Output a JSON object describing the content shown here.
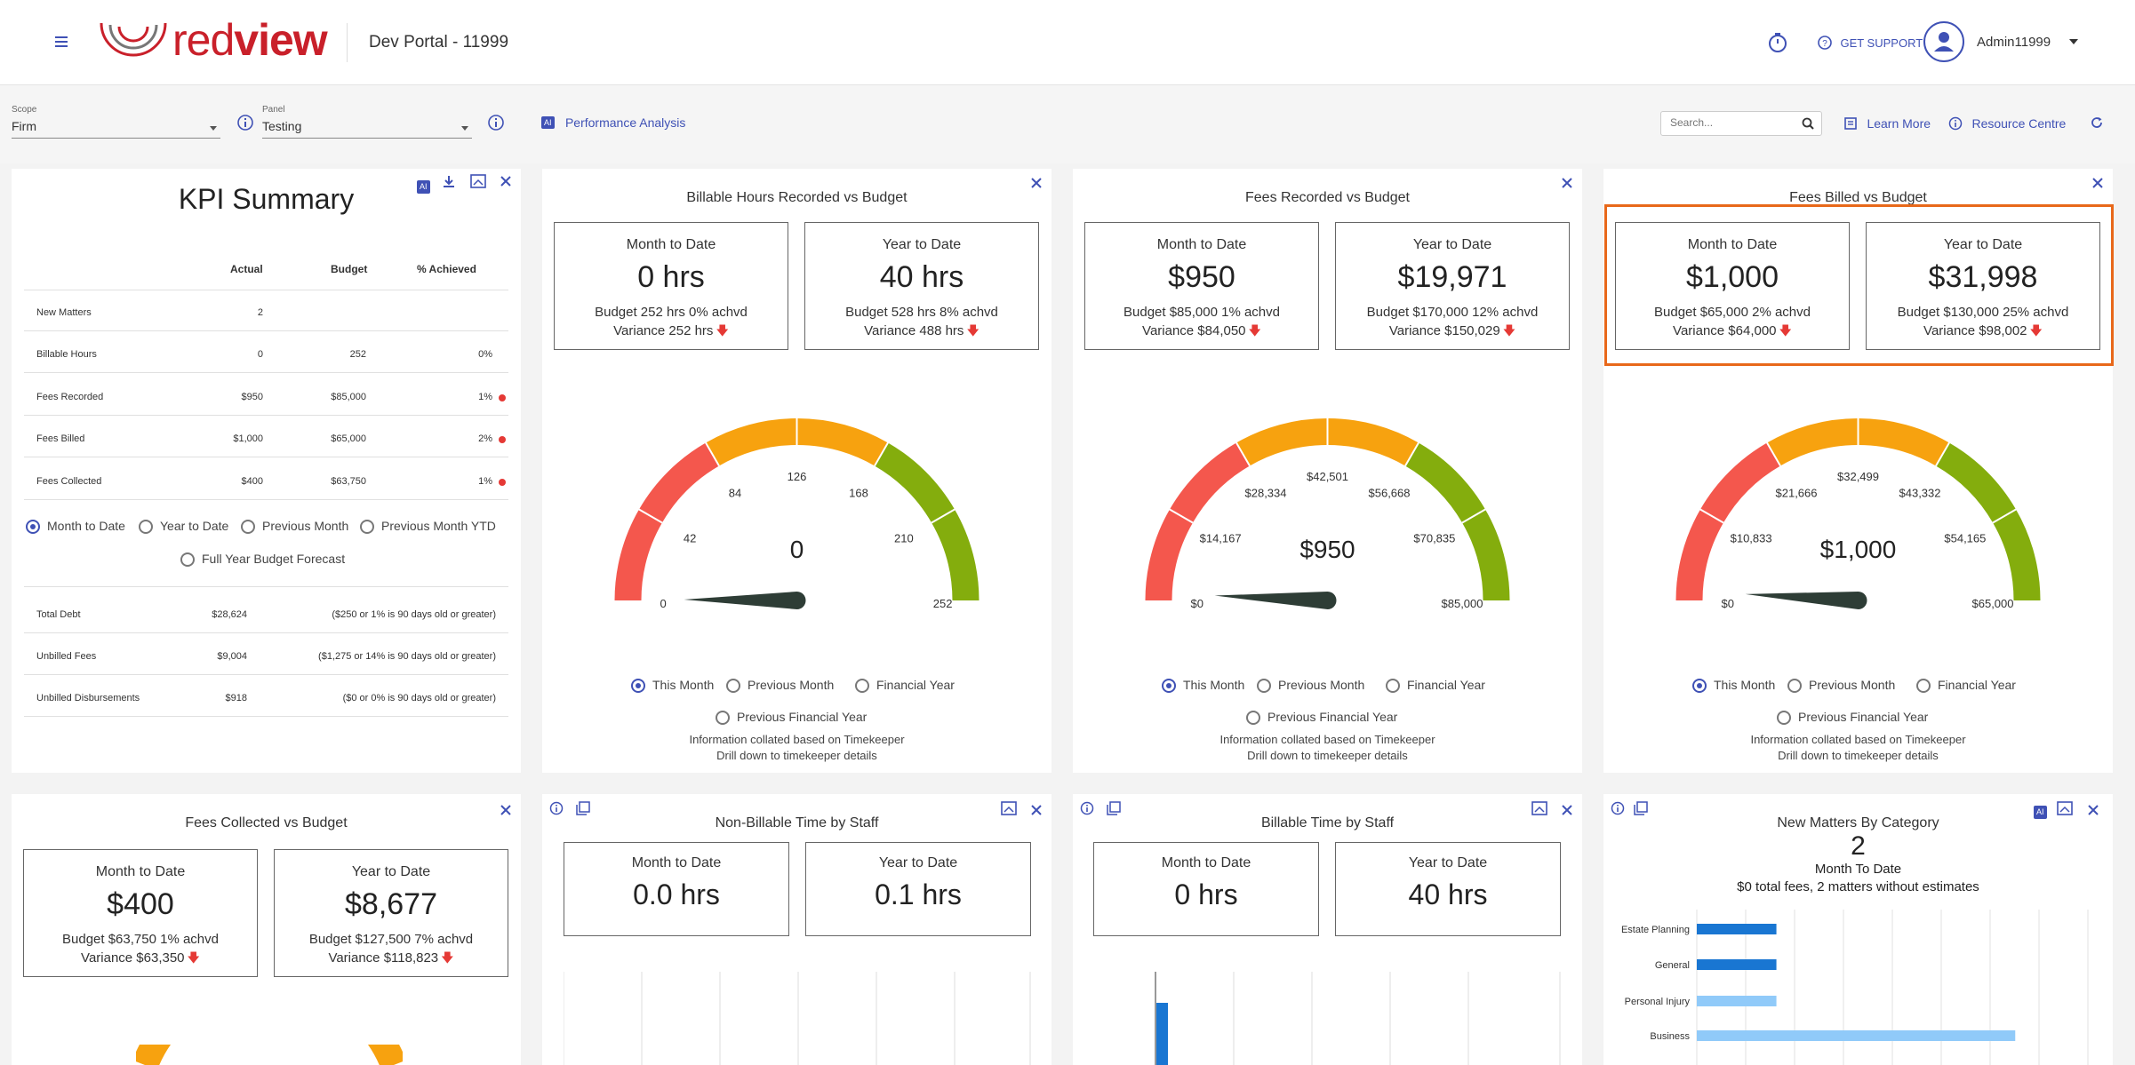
{
  "header": {
    "menu_icon": "hamburger-icon",
    "logo_prefix": "red",
    "logo_suffix": "view",
    "portal_title": "Dev Portal - 11999",
    "timer_icon": "stopwatch-icon",
    "support_label": "GET SUPPORT",
    "user_name": "Admin11999"
  },
  "toolbar": {
    "scope_label": "Scope",
    "scope_value": "Firm",
    "panel_label": "Panel",
    "panel_value": "Testing",
    "ai_badge": "AI",
    "performance_link": "Performance Analysis",
    "search_placeholder": "Search...",
    "learn_more": "Learn More",
    "resource_centre": "Resource Centre"
  },
  "kpi": {
    "title": "KPI Summary",
    "ai_badge": "AI",
    "columns": [
      "Actual",
      "Budget",
      "% Achieved"
    ],
    "rows": [
      {
        "name": "New Matters",
        "actual": "2",
        "budget": "",
        "pct": "",
        "dot": false
      },
      {
        "name": "Billable Hours",
        "actual": "0",
        "budget": "252",
        "pct": "0%",
        "dot": false
      },
      {
        "name": "Fees Recorded",
        "actual": "$950",
        "budget": "$85,000",
        "pct": "1%",
        "dot": true
      },
      {
        "name": "Fees Billed",
        "actual": "$1,000",
        "budget": "$65,000",
        "pct": "2%",
        "dot": true
      },
      {
        "name": "Fees Collected",
        "actual": "$400",
        "budget": "$63,750",
        "pct": "1%",
        "dot": true
      }
    ],
    "periods": [
      "Month to Date",
      "Year to Date",
      "Previous Month",
      "Previous Month YTD",
      "Full Year Budget Forecast"
    ],
    "selected_period": 0,
    "debt_rows": [
      {
        "name": "Total Debt",
        "value": "$28,624",
        "note": "($250 or 1% is 90 days old or greater)"
      },
      {
        "name": "Unbilled Fees",
        "value": "$9,004",
        "note": "($1,275 or 14% is 90 days old or greater)"
      },
      {
        "name": "Unbilled Disbursements",
        "value": "$918",
        "note": "($0 or 0% is 90 days old or greater)"
      }
    ]
  },
  "gauge_options": [
    "This Month",
    "Previous Month",
    "Financial Year",
    "Previous Financial Year"
  ],
  "gauge_note_1": "Information collated based on Timekeeper",
  "gauge_note_2": "Drill down to timekeeper details",
  "billable": {
    "title": "Billable Hours Recorded vs Budget",
    "mtd": {
      "label": "Month to Date",
      "value": "0 hrs",
      "budget": "Budget 252 hrs 0% achvd",
      "variance": "Variance 252 hrs"
    },
    "ytd": {
      "label": "Year to Date",
      "value": "40 hrs",
      "budget": "Budget 528 hrs 8% achvd",
      "variance": "Variance 488 hrs"
    },
    "gauge": {
      "value_label": "0",
      "value": 0,
      "max": 252,
      "ticks": [
        "0",
        "42",
        "84",
        "126",
        "168",
        "210",
        "252"
      ]
    }
  },
  "fees_recorded": {
    "title": "Fees Recorded vs Budget",
    "mtd": {
      "label": "Month to Date",
      "value": "$950",
      "budget": "Budget $85,000 1% achvd",
      "variance": "Variance $84,050"
    },
    "ytd": {
      "label": "Year to Date",
      "value": "$19,971",
      "budget": "Budget $170,000 12% achvd",
      "variance": "Variance $150,029"
    },
    "gauge": {
      "value_label": "$950",
      "value": 950,
      "max": 85000,
      "ticks": [
        "$0",
        "$14,167",
        "$28,334",
        "$42,501",
        "$56,668",
        "$70,835",
        "$85,000"
      ]
    }
  },
  "fees_billed": {
    "title": "Fees Billed vs Budget",
    "mtd": {
      "label": "Month to Date",
      "value": "$1,000",
      "budget": "Budget $65,000 2% achvd",
      "variance": "Variance $64,000"
    },
    "ytd": {
      "label": "Year to Date",
      "value": "$31,998",
      "budget": "Budget $130,000 25% achvd",
      "variance": "Variance $98,002"
    },
    "gauge": {
      "value_label": "$1,000",
      "value": 1000,
      "max": 65000,
      "ticks": [
        "$0",
        "$10,833",
        "$21,666",
        "$32,499",
        "$43,332",
        "$54,165",
        "$65,000"
      ]
    }
  },
  "fees_collected": {
    "title": "Fees Collected vs Budget",
    "mtd": {
      "label": "Month to Date",
      "value": "$400",
      "budget": "Budget $63,750 1% achvd",
      "variance": "Variance $63,350"
    },
    "ytd": {
      "label": "Year to Date",
      "value": "$8,677",
      "budget": "Budget $127,500 7% achvd",
      "variance": "Variance $118,823"
    }
  },
  "non_billable": {
    "title": "Non-Billable Time by Staff",
    "mtd": {
      "label": "Month to Date",
      "value": "0.0 hrs"
    },
    "ytd": {
      "label": "Year to Date",
      "value": "0.1 hrs"
    }
  },
  "billable_staff": {
    "title": "Billable Time by Staff",
    "mtd": {
      "label": "Month to Date",
      "value": "0 hrs"
    },
    "ytd": {
      "label": "Year to Date",
      "value": "40 hrs"
    }
  },
  "new_matters": {
    "title": "New Matters By Category",
    "ai_badge": "AI",
    "count": "2",
    "period": "Month To Date",
    "summary": "$0 total fees, 2 matters without estimates"
  },
  "colors": {
    "accent": "#3f51b5",
    "highlight": "#e8681a",
    "gauge_red": "#f4574d",
    "gauge_orange": "#f7a20f",
    "gauge_green": "#84ad0d",
    "bar_dark": "#1976d2",
    "bar_light": "#90caf9"
  },
  "chart_data": {
    "type": "bar",
    "orientation": "horizontal",
    "categories": [
      "Estate Planning",
      "General",
      "Personal Injury",
      "Business"
    ],
    "series": [
      {
        "values": [
          1,
          1,
          0,
          0
        ]
      },
      {
        "values": [
          0,
          0,
          1,
          4
        ]
      }
    ]
  }
}
